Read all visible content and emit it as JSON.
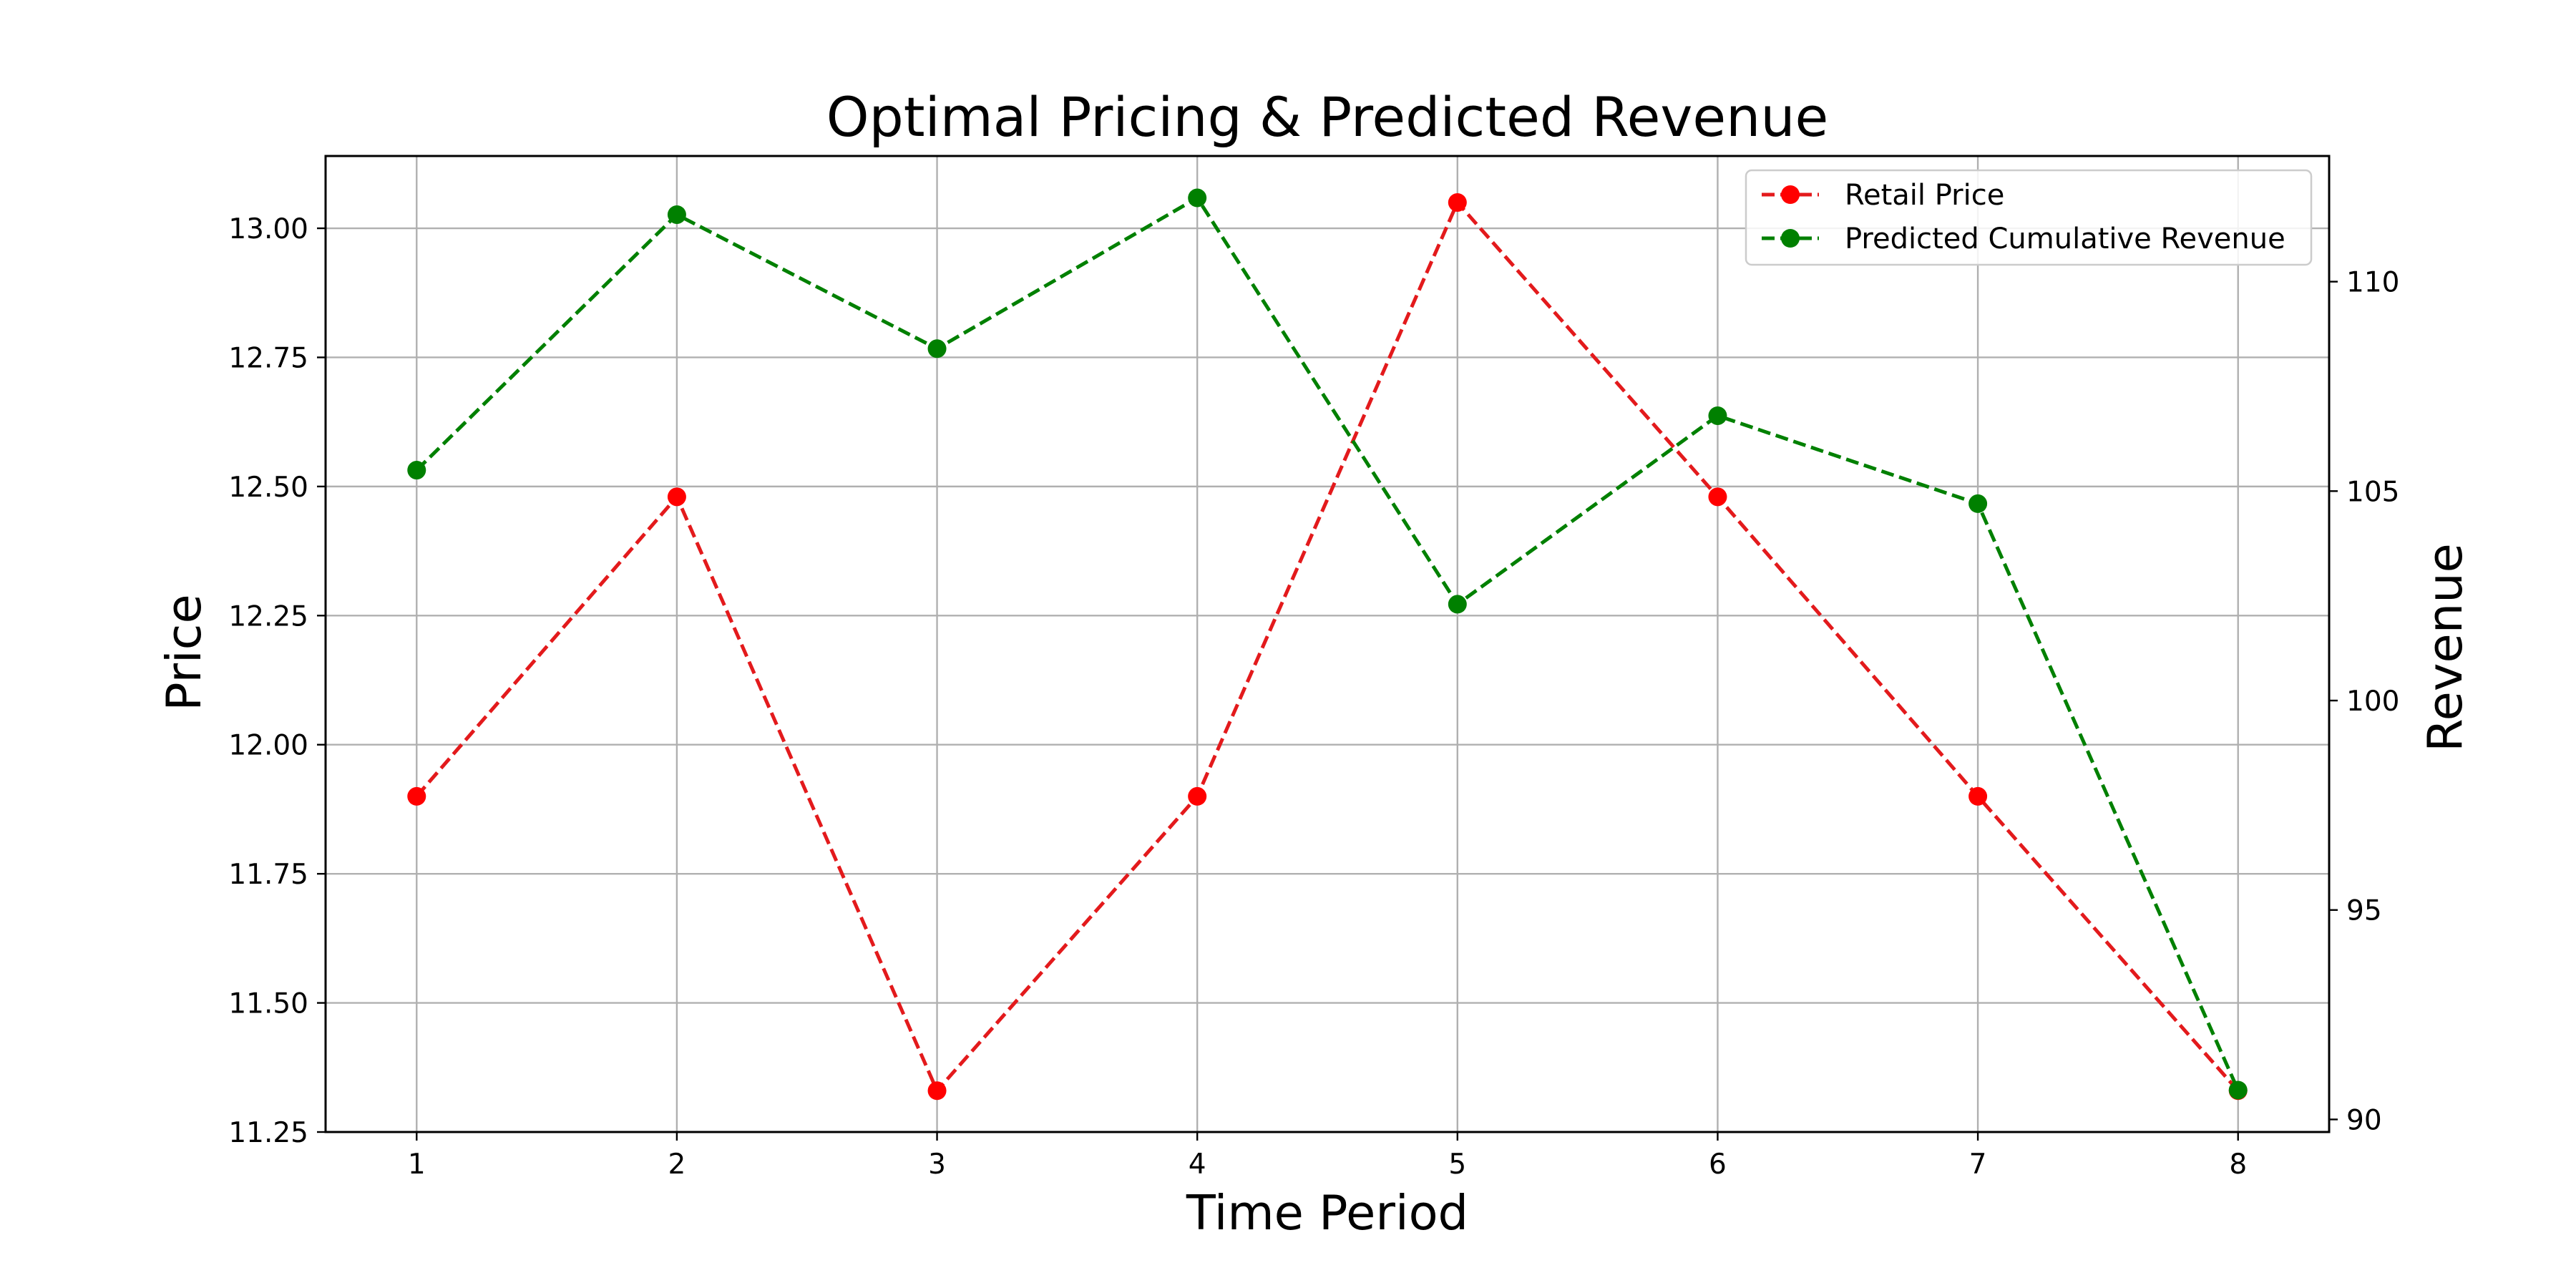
{
  "chart_data": {
    "type": "line",
    "title": "Optimal Pricing & Predicted Revenue",
    "xlabel": "Time Period",
    "ylabel_left": "Price",
    "ylabel_right": "Revenue",
    "x": [
      1,
      2,
      3,
      4,
      5,
      6,
      7,
      8
    ],
    "xlim": [
      0.65,
      8.35
    ],
    "x_ticks": [
      "1",
      "2",
      "3",
      "4",
      "5",
      "6",
      "7",
      "8"
    ],
    "ylim_left": [
      11.25,
      13.14
    ],
    "y_ticks_left": [
      "11.25",
      "11.50",
      "11.75",
      "12.00",
      "12.25",
      "12.50",
      "12.75",
      "13.00"
    ],
    "ylim_right": [
      89.7,
      113.0
    ],
    "y_ticks_right": [
      "90",
      "95",
      "100",
      "105",
      "110"
    ],
    "grid": true,
    "legend_position": "top-right",
    "series": [
      {
        "name": "Retail Price",
        "axis": "left",
        "color": "#ff0000",
        "line_color": "#e31a1c",
        "style": "dashed",
        "marker": "circle",
        "values": [
          11.9,
          12.48,
          11.33,
          11.9,
          13.05,
          12.48,
          11.9,
          11.33
        ]
      },
      {
        "name": "Predicted Cumulative Revenue",
        "axis": "right",
        "color": "#008000",
        "line_color": "#008000",
        "style": "dashed",
        "marker": "circle",
        "values": [
          105.5,
          111.6,
          108.4,
          112.0,
          102.3,
          106.8,
          104.7,
          90.7
        ]
      }
    ]
  }
}
